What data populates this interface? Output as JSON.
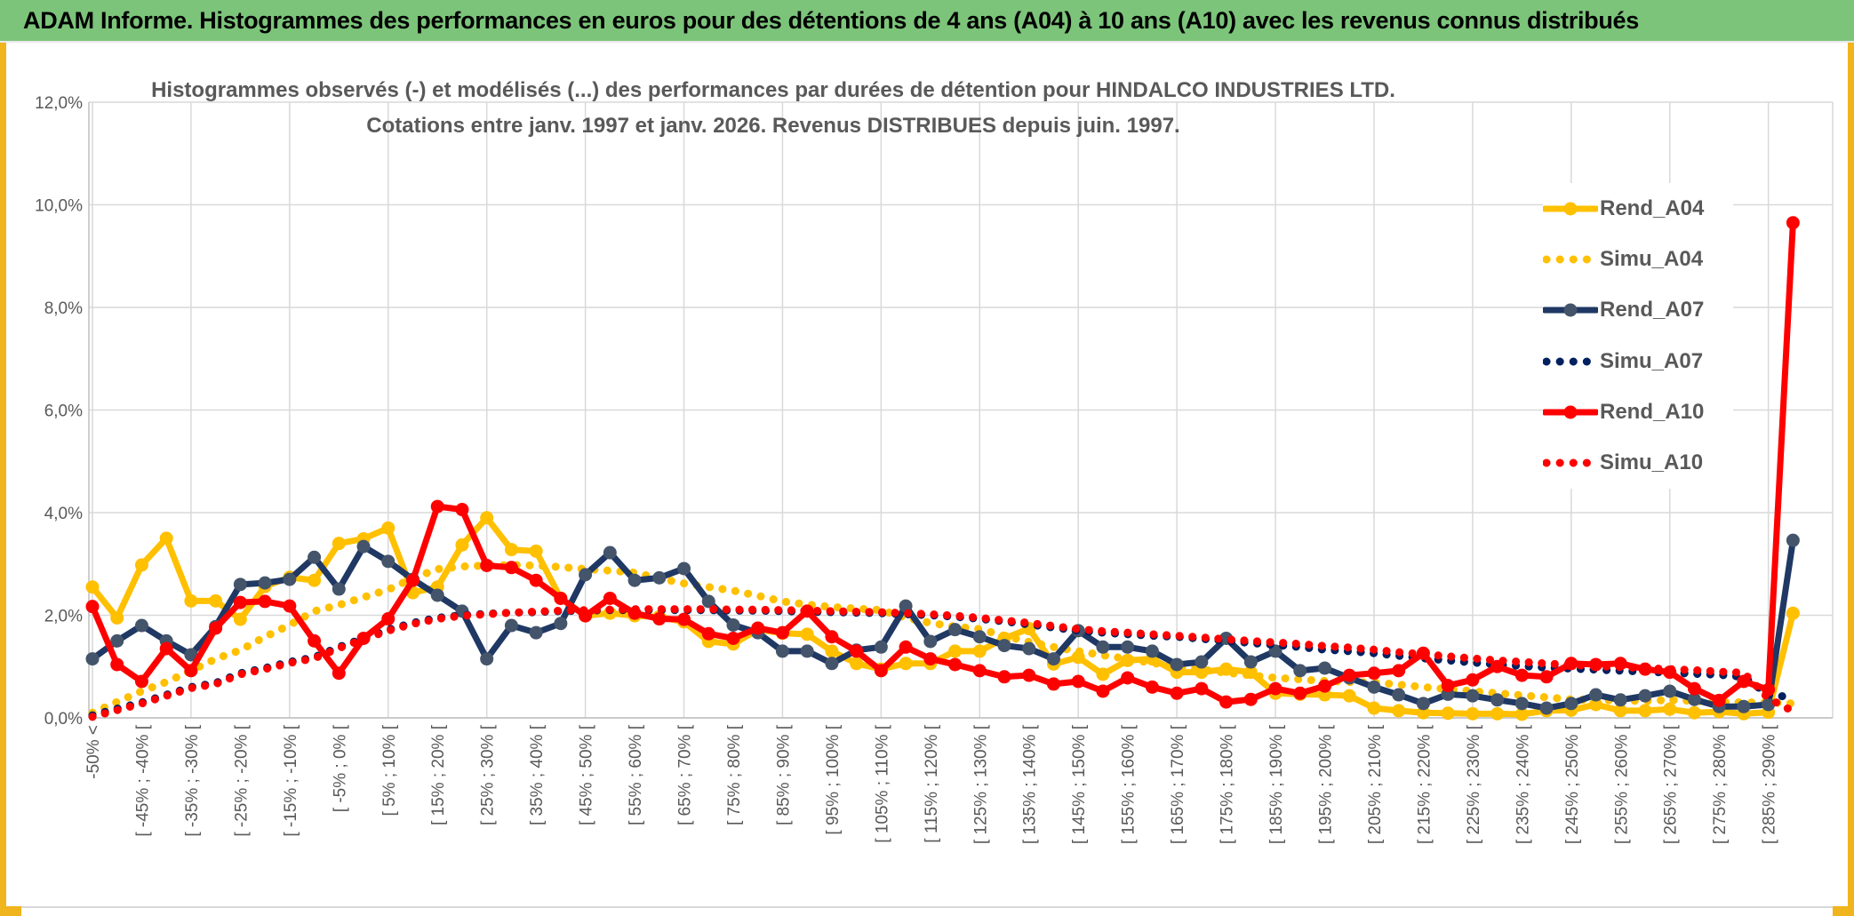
{
  "banner": {
    "title": "ADAM Informe. Histogrammes des performances en euros pour des détentions de 4 ans (A04) à 10 ans (A10) avec les revenus connus distribués"
  },
  "colors": {
    "banner_green": "#7cc47a",
    "accent_gold": "#f0b41c",
    "text_gray": "#595959",
    "grid_gray": "#d9d9d9",
    "axis_gray": "#bfbfbf",
    "series_gold": "#FFC000",
    "series_navy": "#1F3864",
    "series_navy_marker": "#44546A",
    "series_red": "#FF0000"
  },
  "chart_data": {
    "type": "line",
    "title_line1": "Histogrammes observés (-) et modélisés (...) des performances par durées de détention pour HINDALCO INDUSTRIES LTD.",
    "title_line2": "Cotations entre janv. 1997 et janv. 2026. Revenus DISTRIBUES depuis juin. 1997.",
    "y_axis": {
      "unit": "%",
      "min": 0,
      "max": 12,
      "tick_step": 2,
      "tick_labels": [
        "0,0%",
        "2,0%",
        "4,0%",
        "6,0%",
        "8,0%",
        "10,0%",
        "12,0%"
      ]
    },
    "x_axis": {
      "points_between_labels": 2,
      "n_points": 70,
      "labels": [
        "-50% <",
        "[ -45% ; -40% [",
        "[ -35% ; -30% [",
        "[ -25% ; -20% [",
        "[ -15% ; -10% [",
        "[ -5% ; 0% [",
        "[ 5% ; 10% [",
        "[ 15% ; 20% [",
        "[ 25% ; 30% [",
        "[ 35% ; 40% [",
        "[ 45% ; 50% [",
        "[ 55% ; 60% [",
        "[ 65% ; 70% [",
        "[ 75% ; 80% [",
        "[ 85% ; 90% [",
        "[ 95% ; 100% [",
        "[ 105% ; 110% [",
        "[ 115% ; 120% [",
        "[ 125% ; 130% [",
        "[ 135% ; 140% [",
        "[ 145% ; 150% [",
        "[ 155% ; 160% [",
        "[ 165% ; 170% [",
        "[ 175% ; 180% [",
        "[ 185% ; 190% [",
        "[ 195% ; 200% [",
        "[ 205% ; 210% [",
        "[ 215% ; 220% [",
        "[ 225% ; 230% [",
        "[ 235% ; 240% [",
        "[ 245% ; 250% [",
        "[ 255% ; 260% [",
        "[ 265% ; 270% [",
        "[ 275% ; 280% [",
        "[ 285% ; 290% ["
      ]
    },
    "grid": {
      "horizontal": true,
      "vertical_every_points": 4
    },
    "legend_position": "right-top",
    "series": [
      {
        "name": "Rend_A04",
        "color": "#FFC000",
        "marker_color": "#FFC000",
        "line_style": "solid",
        "values": [
          2.55,
          1.95,
          2.98,
          3.5,
          2.28,
          2.28,
          1.92,
          2.56,
          2.74,
          2.68,
          3.4,
          3.49,
          3.7,
          2.44,
          2.55,
          3.37,
          3.9,
          3.28,
          3.25,
          2.33,
          1.99,
          2.04,
          1.99,
          1.97,
          1.87,
          1.49,
          1.44,
          1.72,
          1.65,
          1.63,
          1.3,
          1.06,
          0.95,
          1.06,
          1.06,
          1.3,
          1.3,
          1.55,
          1.74,
          1.05,
          1.18,
          0.85,
          1.12,
          1.15,
          0.89,
          0.89,
          0.95,
          0.89,
          0.48,
          0.46,
          0.45,
          0.43,
          0.19,
          0.14,
          0.1,
          0.09,
          0.08,
          0.08,
          0.07,
          0.14,
          0.15,
          0.26,
          0.14,
          0.14,
          0.17,
          0.1,
          0.12,
          0.08,
          0.11,
          2.04
        ]
      },
      {
        "name": "Simu_A04",
        "color": "#FFC000",
        "line_style": "dotted",
        "values": [
          0.1,
          0.31,
          0.52,
          0.7,
          0.92,
          1.15,
          1.32,
          1.58,
          1.81,
          2.08,
          2.2,
          2.35,
          2.5,
          2.72,
          2.9,
          2.95,
          2.97,
          2.98,
          2.97,
          2.94,
          2.9,
          2.87,
          2.83,
          2.72,
          2.62,
          2.55,
          2.48,
          2.38,
          2.27,
          2.21,
          2.16,
          2.13,
          2.1,
          1.95,
          1.85,
          1.78,
          1.73,
          1.6,
          1.48,
          1.38,
          1.3,
          1.22,
          1.15,
          1.07,
          1.0,
          0.94,
          0.88,
          0.83,
          0.78,
          0.75,
          0.72,
          0.7,
          0.69,
          0.65,
          0.6,
          0.56,
          0.52,
          0.48,
          0.44,
          0.4,
          0.36,
          0.35,
          0.34,
          0.33,
          0.35,
          0.33,
          0.31,
          0.3,
          0.3,
          0.28
        ]
      },
      {
        "name": "Rend_A07",
        "color": "#1F3864",
        "marker_color": "#44546A",
        "line_style": "solid",
        "values": [
          1.15,
          1.5,
          1.8,
          1.5,
          1.23,
          1.78,
          2.6,
          2.63,
          2.7,
          3.13,
          2.51,
          3.34,
          3.05,
          2.7,
          2.39,
          2.08,
          1.15,
          1.8,
          1.66,
          1.84,
          2.79,
          3.22,
          2.68,
          2.73,
          2.91,
          2.27,
          1.81,
          1.66,
          1.3,
          1.3,
          1.06,
          1.32,
          1.38,
          2.18,
          1.49,
          1.72,
          1.58,
          1.41,
          1.35,
          1.15,
          1.7,
          1.38,
          1.38,
          1.3,
          1.04,
          1.09,
          1.55,
          1.09,
          1.3,
          0.92,
          0.97,
          0.78,
          0.6,
          0.45,
          0.28,
          0.46,
          0.43,
          0.35,
          0.28,
          0.19,
          0.28,
          0.45,
          0.35,
          0.43,
          0.52,
          0.36,
          0.22,
          0.22,
          0.26,
          3.46
        ]
      },
      {
        "name": "Simu_A07",
        "color": "#002060",
        "line_style": "dotted",
        "values": [
          0.05,
          0.18,
          0.3,
          0.45,
          0.6,
          0.68,
          0.87,
          0.97,
          1.09,
          1.18,
          1.38,
          1.55,
          1.72,
          1.85,
          1.95,
          2.0,
          2.03,
          2.05,
          2.06,
          2.08,
          2.09,
          2.1,
          2.1,
          2.1,
          2.1,
          2.1,
          2.09,
          2.09,
          2.08,
          2.07,
          2.06,
          2.05,
          2.04,
          2.02,
          2.0,
          1.97,
          1.93,
          1.88,
          1.82,
          1.76,
          1.7,
          1.66,
          1.63,
          1.6,
          1.58,
          1.54,
          1.5,
          1.46,
          1.42,
          1.38,
          1.33,
          1.3,
          1.26,
          1.21,
          1.16,
          1.12,
          1.08,
          1.04,
          1.01,
          0.98,
          0.96,
          0.94,
          0.92,
          0.9,
          0.88,
          0.86,
          0.84,
          0.8,
          0.45,
          0.4
        ]
      },
      {
        "name": "Rend_A10",
        "color": "#FF0000",
        "marker_color": "#FF0000",
        "line_style": "solid",
        "values": [
          2.17,
          1.04,
          0.71,
          1.35,
          0.92,
          1.75,
          2.25,
          2.27,
          2.18,
          1.5,
          0.87,
          1.55,
          1.93,
          2.68,
          4.12,
          4.06,
          2.97,
          2.93,
          2.68,
          2.33,
          1.99,
          2.33,
          2.04,
          1.93,
          1.92,
          1.64,
          1.55,
          1.75,
          1.66,
          2.08,
          1.58,
          1.3,
          0.92,
          1.38,
          1.15,
          1.04,
          0.92,
          0.8,
          0.83,
          0.66,
          0.71,
          0.52,
          0.78,
          0.6,
          0.48,
          0.57,
          0.31,
          0.36,
          0.57,
          0.48,
          0.62,
          0.83,
          0.87,
          0.92,
          1.26,
          0.63,
          0.74,
          1.0,
          0.83,
          0.8,
          1.06,
          1.04,
          1.06,
          0.95,
          0.89,
          0.57,
          0.34,
          0.71,
          0.55,
          9.65
        ]
      },
      {
        "name": "Simu_A10",
        "color": "#FF0000",
        "line_style": "dotted",
        "values": [
          0.02,
          0.15,
          0.28,
          0.43,
          0.58,
          0.66,
          0.85,
          0.95,
          1.07,
          1.16,
          1.36,
          1.53,
          1.7,
          1.83,
          1.93,
          1.99,
          2.02,
          2.05,
          2.07,
          2.09,
          2.1,
          2.11,
          2.12,
          2.12,
          2.12,
          2.12,
          2.11,
          2.11,
          2.1,
          2.09,
          2.08,
          2.07,
          2.06,
          2.04,
          2.02,
          1.99,
          1.95,
          1.9,
          1.85,
          1.79,
          1.73,
          1.69,
          1.66,
          1.63,
          1.6,
          1.57,
          1.53,
          1.5,
          1.47,
          1.44,
          1.4,
          1.37,
          1.33,
          1.28,
          1.24,
          1.2,
          1.16,
          1.12,
          1.09,
          1.06,
          1.03,
          1.01,
          0.99,
          0.97,
          0.95,
          0.93,
          0.9,
          0.88,
          0.38,
          0.13
        ]
      }
    ]
  }
}
